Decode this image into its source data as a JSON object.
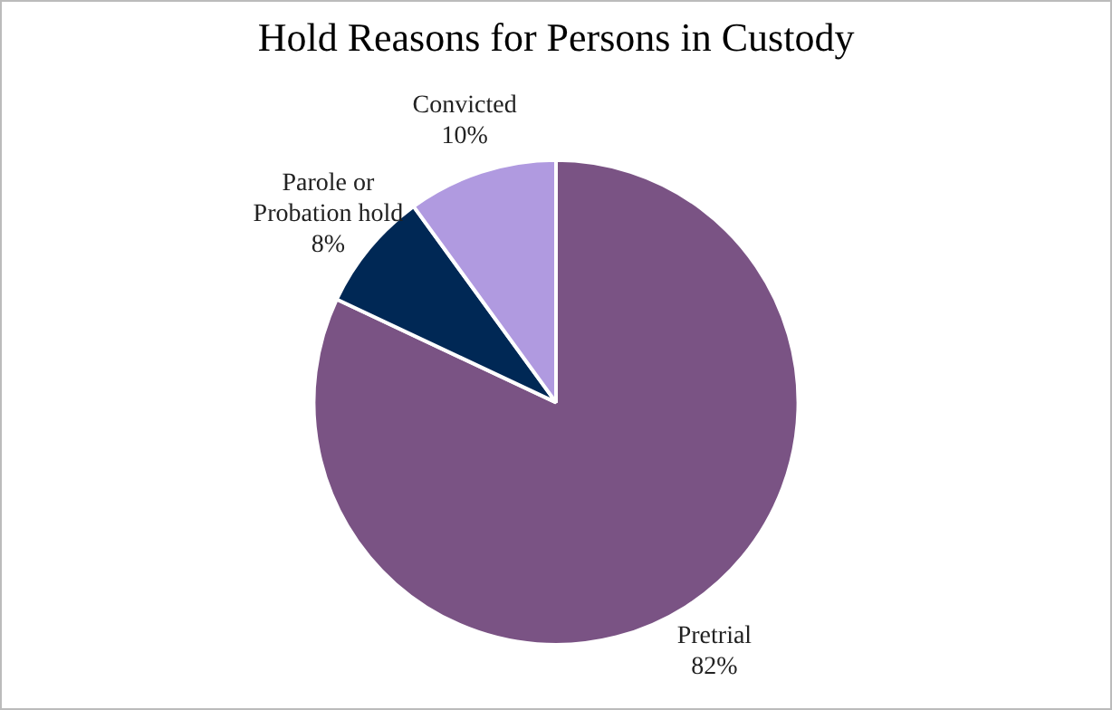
{
  "chart_data": {
    "type": "pie",
    "title": "Hold Reasons for Persons in Custody",
    "categories": [
      "Pretrial",
      "Parole or Probation hold",
      "Convicted"
    ],
    "values": [
      82,
      8,
      10
    ],
    "value_labels": [
      "82%",
      "8%",
      "10%"
    ],
    "colors": [
      "#7a5384",
      "#002855",
      "#b09ae0"
    ],
    "legend": false
  }
}
